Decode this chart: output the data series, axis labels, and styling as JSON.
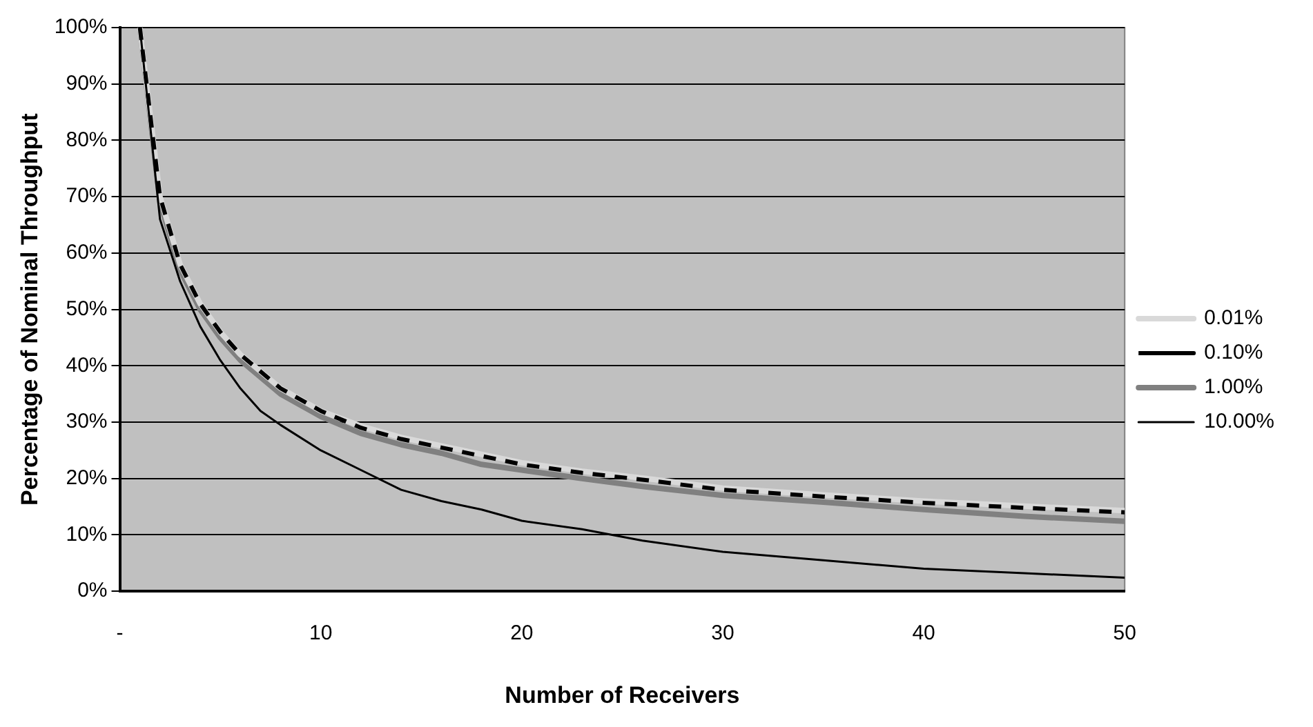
{
  "chart_data": {
    "type": "line",
    "xlabel": "Number of Receivers",
    "ylabel": "Percentage of Nominal Throughput",
    "xlim": [
      0,
      50
    ],
    "xticks": [
      {
        "value": 0,
        "label": "-"
      },
      10,
      20,
      30,
      40,
      50
    ],
    "ylim": [
      0,
      100
    ],
    "yticks": [
      {
        "value": 0,
        "label": "0%"
      },
      {
        "value": 10,
        "label": "10%"
      },
      {
        "value": 20,
        "label": "20%"
      },
      {
        "value": 30,
        "label": "30%"
      },
      {
        "value": 40,
        "label": "40%"
      },
      {
        "value": 50,
        "label": "50%"
      },
      {
        "value": 60,
        "label": "60%"
      },
      {
        "value": 70,
        "label": "70%"
      },
      {
        "value": 80,
        "label": "80%"
      },
      {
        "value": 90,
        "label": "90%"
      },
      {
        "value": 100,
        "label": "100%"
      }
    ],
    "x": [
      1,
      2,
      3,
      4,
      5,
      6,
      7,
      8,
      10,
      12,
      14,
      16,
      18,
      20,
      23,
      26,
      30,
      35,
      40,
      45,
      50
    ],
    "grid": "y",
    "legend": "right",
    "marker": "none",
    "series": [
      {
        "name": "0.01%",
        "color": "#d9d9d9",
        "line_style": "solid",
        "values": [
          100,
          70,
          58,
          51,
          46,
          42,
          39,
          36,
          32,
          29.3,
          27.3,
          25.8,
          24.3,
          22.8,
          21.3,
          20.1,
          18.3,
          17.1,
          16,
          15.1,
          14.3
        ]
      },
      {
        "name": "0.10%",
        "color": "#000000",
        "line_style": "dashed",
        "values": [
          100,
          70,
          58,
          51,
          46,
          42,
          39,
          36,
          32,
          29,
          27,
          25.5,
          24,
          22.5,
          21,
          19.8,
          18,
          16.8,
          15.7,
          14.8,
          14
        ]
      },
      {
        "name": "1.00%",
        "color": "#808080",
        "line_style": "solid",
        "values": [
          100,
          69,
          57,
          50,
          45,
          41,
          38,
          35,
          31,
          28,
          26,
          24.5,
          22.5,
          21.5,
          20,
          18.6,
          17,
          15.8,
          14.5,
          13.3,
          12.4
        ]
      },
      {
        "name": "10.00%",
        "color": "#000000",
        "line_style": "solid",
        "values": [
          100,
          66,
          55,
          47,
          41,
          36,
          32,
          29.5,
          25,
          21.5,
          18,
          16,
          14.5,
          12.5,
          11,
          9,
          7,
          5.5,
          4,
          3.2,
          2.4
        ]
      }
    ]
  }
}
